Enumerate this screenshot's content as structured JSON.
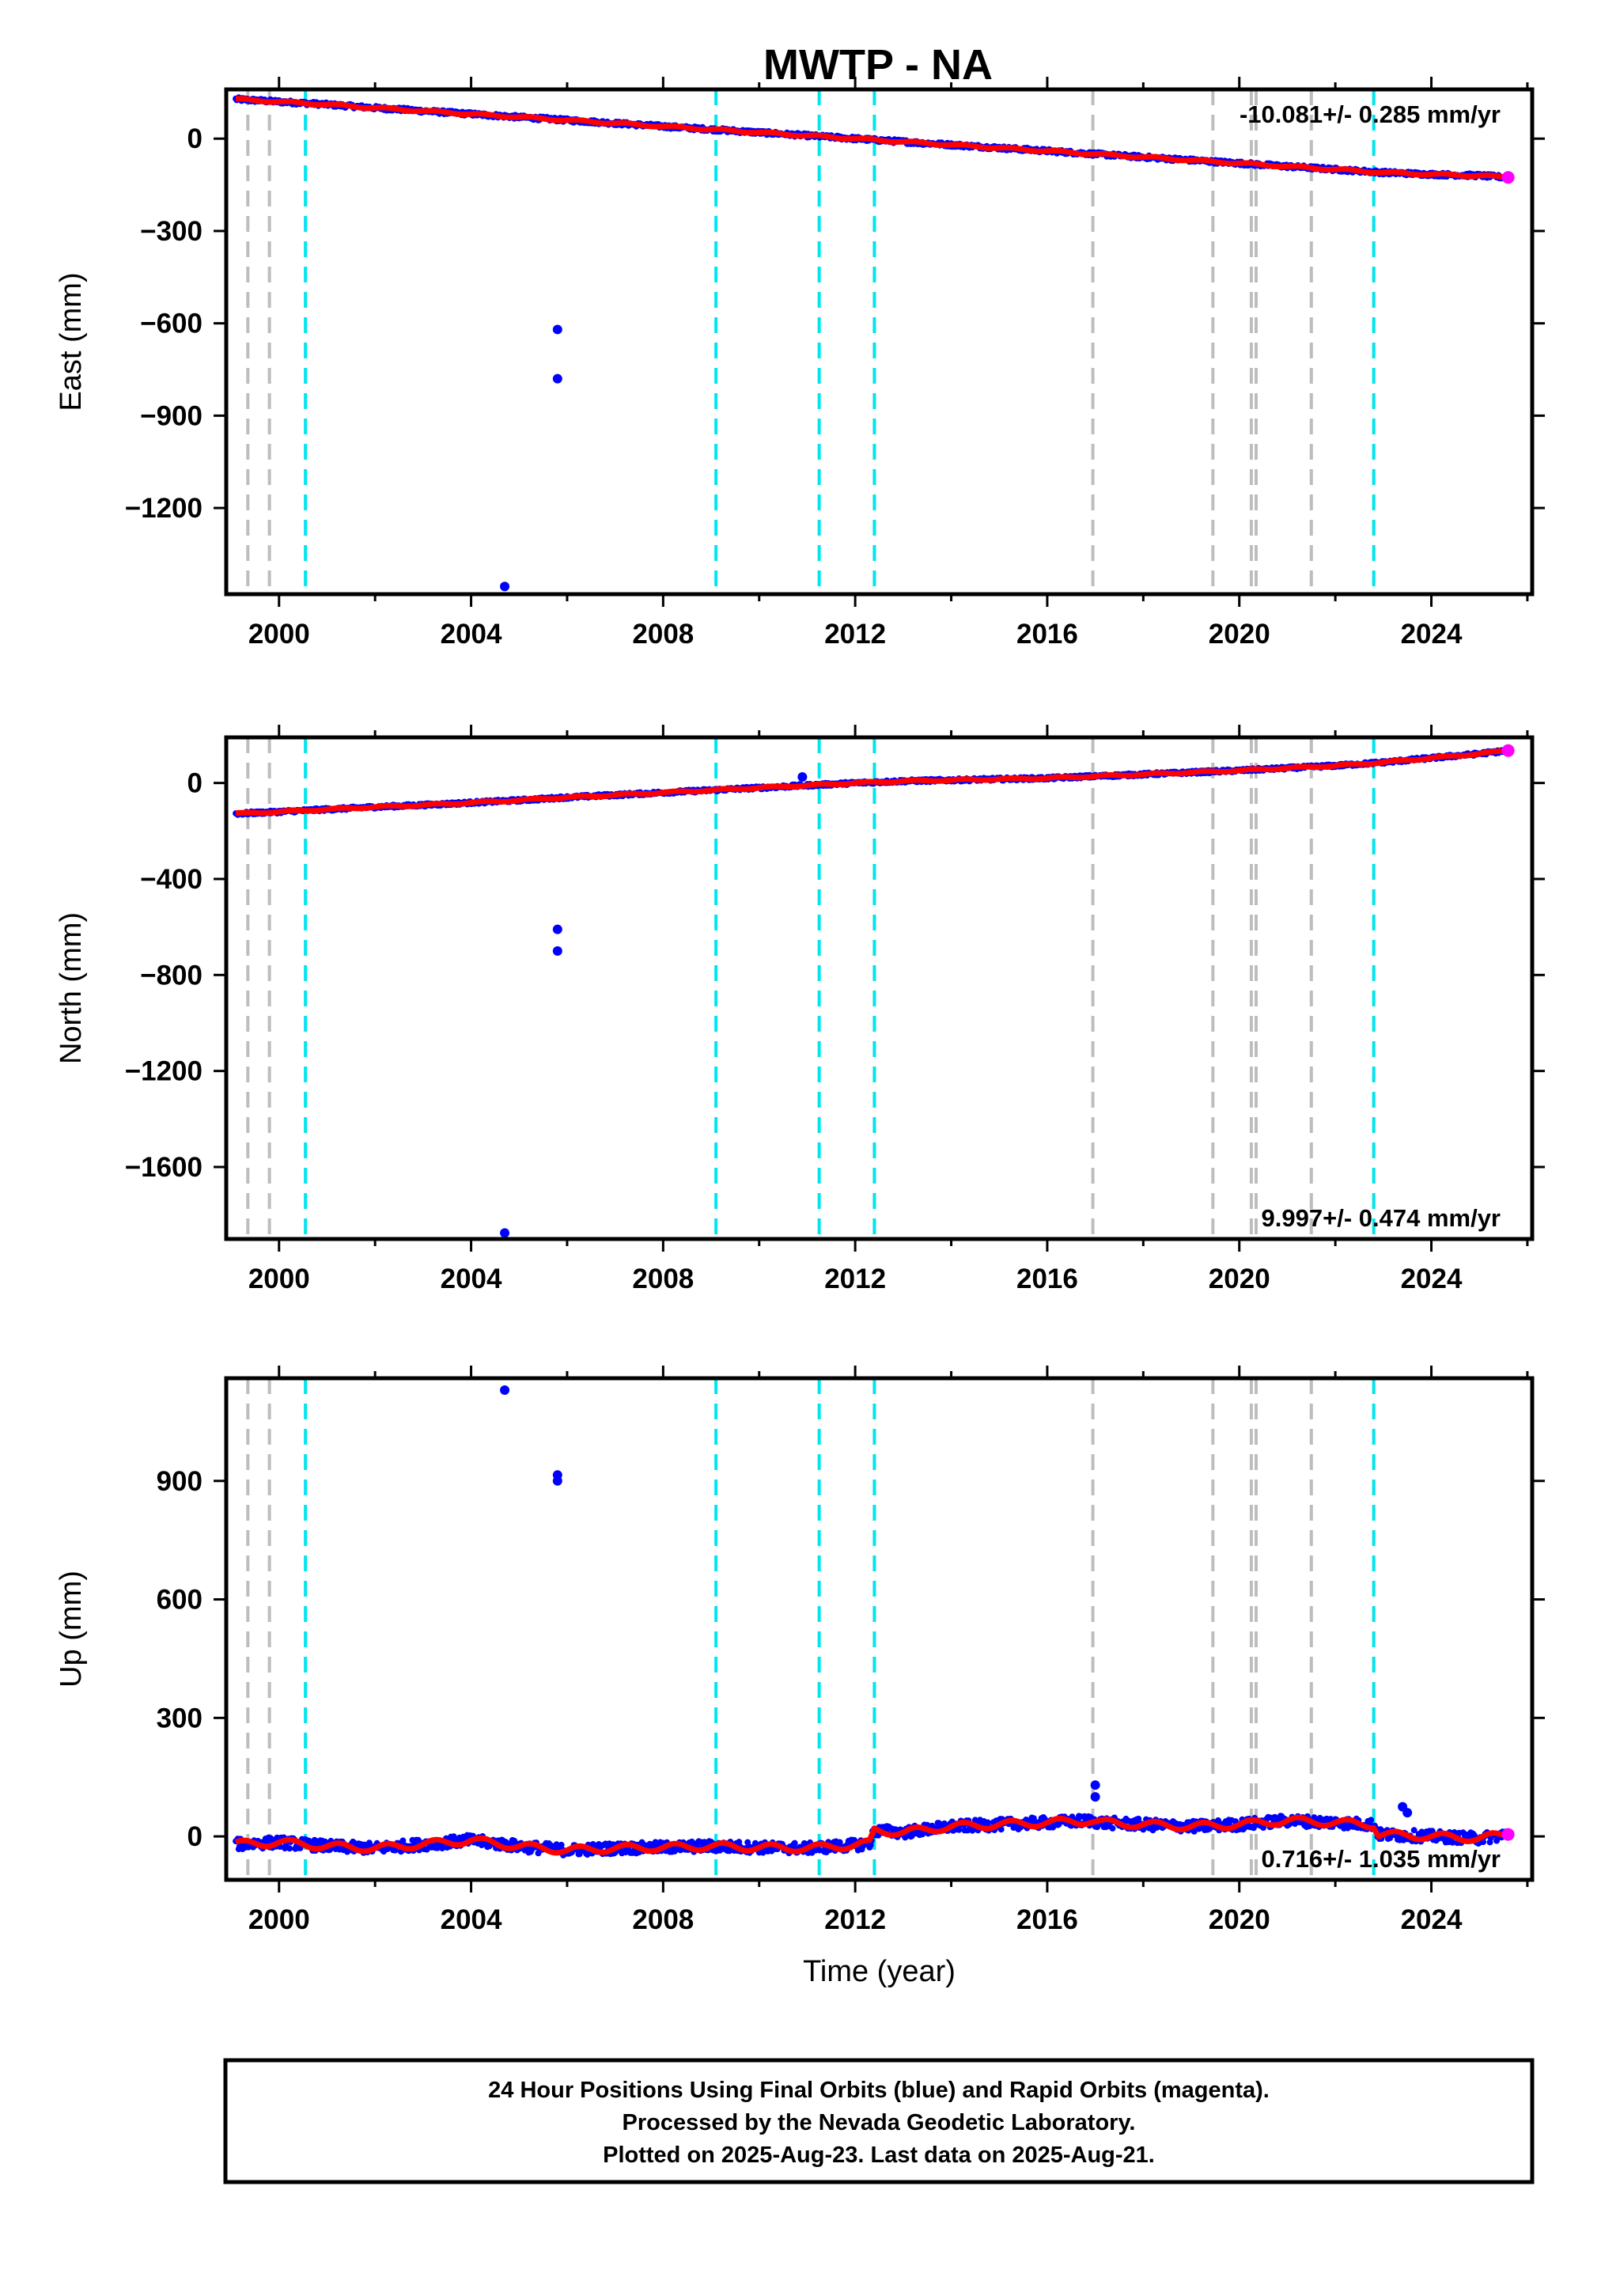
{
  "chart_data": [
    {
      "type": "scatter",
      "title": "MWTP - NA",
      "ylabel": "East (mm)",
      "xlabel": "",
      "xlim": [
        1998.9,
        2026.1
      ],
      "ylim": [
        -1480,
        160
      ],
      "xticks": [
        2000,
        2004,
        2008,
        2012,
        2016,
        2020,
        2024
      ],
      "yticks": [
        0,
        -300,
        -600,
        -900,
        -1200
      ],
      "rate_label": "-10.081+/- 0.285 mm/yr",
      "rate_position": "top-right",
      "trend": [
        [
          1999.1,
          128
        ],
        [
          2025.6,
          -126
        ]
      ],
      "outliers": [
        [
          2004.7,
          -1455
        ],
        [
          2005.8,
          -620
        ],
        [
          2005.8,
          -780
        ]
      ],
      "series": [
        {
          "values_x": [
            1999.1,
            2000,
            2001,
            2002,
            2003,
            2004,
            2005,
            2006,
            2007,
            2008,
            2009,
            2010,
            2011,
            2012,
            2013,
            2014,
            2015,
            2016,
            2017,
            2018,
            2019,
            2020,
            2021,
            2022,
            2023,
            2024,
            2025,
            2025.6
          ],
          "values_y": [
            128,
            120,
            111,
            100,
            90,
            80,
            70,
            60,
            50,
            40,
            30,
            20,
            10,
            0,
            -10,
            -20,
            -30,
            -40,
            -50,
            -60,
            -70,
            -80,
            -90,
            -100,
            -110,
            -116,
            -120,
            -126
          ]
        }
      ]
    },
    {
      "type": "scatter",
      "title": "",
      "ylabel": "North (mm)",
      "xlabel": "",
      "xlim": [
        1998.9,
        2026.1
      ],
      "ylim": [
        -1900,
        190
      ],
      "xticks": [
        2000,
        2004,
        2008,
        2012,
        2016,
        2020,
        2024
      ],
      "yticks": [
        0,
        -400,
        -800,
        -1200,
        -1600
      ],
      "rate_label": "9.997+/- 0.474 mm/yr",
      "rate_position": "bottom-right",
      "trend": [
        [
          1999.1,
          -128
        ],
        [
          2025.6,
          135
        ]
      ],
      "outliers": [
        [
          2004.7,
          -1875
        ],
        [
          2005.8,
          -610
        ],
        [
          2005.8,
          -700
        ],
        [
          2010.9,
          25
        ]
      ],
      "series": [
        {
          "values_x": [
            1999.1,
            2000,
            2001,
            2002,
            2003,
            2004,
            2005,
            2006,
            2007,
            2008,
            2009,
            2010,
            2011,
            2012,
            2013,
            2014,
            2015,
            2016,
            2017,
            2018,
            2019,
            2020,
            2021,
            2022,
            2023,
            2024,
            2025,
            2025.6
          ],
          "values_y": [
            -128,
            -120,
            -110,
            -100,
            -92,
            -82,
            -72,
            -60,
            -50,
            -40,
            -30,
            -20,
            -10,
            0,
            8,
            12,
            16,
            20,
            28,
            36,
            44,
            52,
            62,
            72,
            86,
            104,
            122,
            135
          ]
        }
      ]
    },
    {
      "type": "scatter",
      "title": "",
      "ylabel": "Up (mm)",
      "xlabel": "Time (year)",
      "xlim": [
        1998.9,
        2026.1
      ],
      "ylim": [
        -110,
        1160
      ],
      "xticks": [
        2000,
        2004,
        2008,
        2012,
        2016,
        2020,
        2024
      ],
      "yticks": [
        0,
        300,
        600,
        900
      ],
      "rate_label": "0.716+/- 1.035 mm/yr",
      "rate_position": "bottom-right",
      "trend": [
        [
          1999.1,
          -20
        ],
        [
          2025.6,
          5
        ]
      ],
      "outliers": [
        [
          2004.7,
          1130
        ],
        [
          2005.8,
          900
        ],
        [
          2005.8,
          915
        ],
        [
          2017.0,
          130
        ],
        [
          2017.0,
          100
        ],
        [
          2023.4,
          75
        ],
        [
          2023.5,
          60
        ]
      ],
      "series": [
        {
          "values_x": [
            1999.1,
            2000,
            2001,
            2002,
            2003,
            2004,
            2005,
            2006,
            2007,
            2008,
            2009,
            2010,
            2011,
            2012,
            2012.3,
            2012.4,
            2013,
            2014,
            2015,
            2016,
            2016.9,
            2017.1,
            2018,
            2019,
            2020,
            2021,
            2022,
            2022.8,
            2022.9,
            2024,
            2025,
            2025.6
          ],
          "values_y": [
            -20,
            -15,
            -25,
            -30,
            -20,
            -10,
            -25,
            -35,
            -30,
            -28,
            -25,
            -28,
            -30,
            -22,
            -18,
            15,
            10,
            25,
            30,
            35,
            40,
            35,
            30,
            25,
            30,
            40,
            35,
            30,
            5,
            0,
            -5,
            5
          ]
        }
      ]
    }
  ],
  "events": {
    "gray": [
      1999.35,
      1999.8,
      2016.95,
      2019.45,
      2020.25,
      2020.35,
      2021.5
    ],
    "cyan": [
      2000.55,
      2009.1,
      2011.25,
      2012.4,
      2022.8
    ]
  },
  "colors": {
    "final_orbits": "#0000ff",
    "rapid_orbits": "#ff00ff",
    "trend": "#ff0000",
    "event_gray": "#bdbdbd",
    "event_cyan": "#00e5ee"
  },
  "caption": {
    "line1": "24 Hour Positions Using Final Orbits (blue) and Rapid Orbits (magenta).",
    "line2": "Processed by the Nevada Geodetic Laboratory.",
    "line3": "Plotted on 2025-Aug-23. Last data on 2025-Aug-21."
  }
}
